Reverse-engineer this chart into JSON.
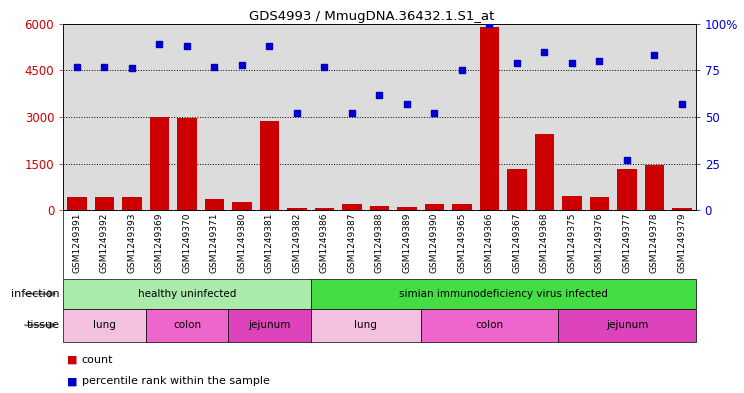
{
  "title": "GDS4993 / MmugDNA.36432.1.S1_at",
  "samples": [
    "GSM1249391",
    "GSM1249392",
    "GSM1249393",
    "GSM1249369",
    "GSM1249370",
    "GSM1249371",
    "GSM1249380",
    "GSM1249381",
    "GSM1249382",
    "GSM1249386",
    "GSM1249387",
    "GSM1249388",
    "GSM1249389",
    "GSM1249390",
    "GSM1249365",
    "GSM1249366",
    "GSM1249367",
    "GSM1249368",
    "GSM1249375",
    "GSM1249376",
    "GSM1249377",
    "GSM1249378",
    "GSM1249379"
  ],
  "counts": [
    430,
    430,
    430,
    3000,
    2950,
    370,
    280,
    2880,
    60,
    60,
    200,
    150,
    100,
    200,
    200,
    5900,
    1330,
    2450,
    450,
    430,
    1330,
    1470,
    60
  ],
  "percentiles": [
    77,
    77,
    76,
    89,
    88,
    77,
    78,
    88,
    52,
    77,
    52,
    62,
    57,
    52,
    75,
    100,
    79,
    85,
    79,
    80,
    27,
    83,
    57
  ],
  "infection_groups": [
    {
      "label": "healthy uninfected",
      "start": 0,
      "end": 9,
      "color": "#AAEAAA"
    },
    {
      "label": "simian immunodeficiency virus infected",
      "start": 9,
      "end": 23,
      "color": "#44DD44"
    }
  ],
  "tissue_groups": [
    {
      "label": "lung",
      "start": 0,
      "end": 3,
      "color": "#F4C0E0"
    },
    {
      "label": "colon",
      "start": 3,
      "end": 6,
      "color": "#EE66CC"
    },
    {
      "label": "jejunum",
      "start": 6,
      "end": 9,
      "color": "#DD44BB"
    },
    {
      "label": "lung",
      "start": 9,
      "end": 13,
      "color": "#F4C0E0"
    },
    {
      "label": "colon",
      "start": 13,
      "end": 18,
      "color": "#EE66CC"
    },
    {
      "label": "jejunum",
      "start": 18,
      "end": 23,
      "color": "#DD44BB"
    }
  ],
  "count_color": "#CC0000",
  "percentile_color": "#0000CC",
  "ylim_left": [
    0,
    6000
  ],
  "ylim_right": [
    0,
    100
  ],
  "yticks_left": [
    0,
    1500,
    3000,
    4500,
    6000
  ],
  "yticks_right": [
    0,
    25,
    50,
    75,
    100
  ],
  "plot_bg_color": "#DCDCDC",
  "bar_width": 0.7
}
